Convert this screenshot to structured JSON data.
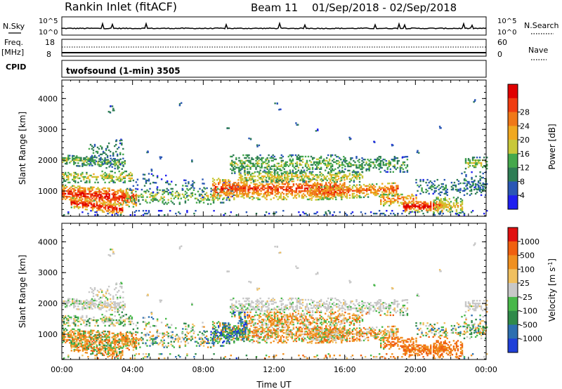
{
  "header": {
    "station": "Rankin Inlet (fitACF)",
    "beam": "Beam 11",
    "dates": "01/Sep/2018 - 02/Sep/2018"
  },
  "strip": {
    "nsky_label": "N.Sky",
    "nsearch_label": "N.Search",
    "nsky_ticks": [
      "10^5",
      "10^0"
    ],
    "freq_label": "Freq.",
    "freq_unit": "[MHz]",
    "freq_ticks": [
      "18",
      "8"
    ],
    "nave_label": "Nave",
    "nave_ticks": [
      "60",
      "0"
    ],
    "cpid_label": "CPID",
    "program": "twofsound (1-min) 3505"
  },
  "chart_data": [
    {
      "type": "heatmap",
      "name": "power",
      "ylabel": "Slant Range [km]",
      "yticks": [
        1000,
        2000,
        3000,
        4000
      ],
      "ylim": [
        180,
        4600
      ],
      "xlim_hours": [
        0,
        24
      ],
      "xticks": [
        "00:00",
        "04:00",
        "08:00",
        "12:00",
        "16:00",
        "20:00",
        "00:00"
      ],
      "colorbar": {
        "label": "Power [dB]",
        "ticks": [
          "4",
          "8",
          "12",
          "16",
          "20",
          "24",
          "28"
        ],
        "colors": [
          "#1f1ff0",
          "#2a57b5",
          "#2e7d55",
          "#45a84c",
          "#c8c83a",
          "#f0a820",
          "#f07818",
          "#f03c10",
          "#e00000"
        ]
      }
    },
    {
      "type": "heatmap",
      "name": "velocity",
      "ylabel": "Slant Range [km]",
      "yticks": [
        1000,
        2000,
        3000,
        4000
      ],
      "ylim": [
        180,
        4600
      ],
      "xlim_hours": [
        0,
        24
      ],
      "xticks": [
        "00:00",
        "04:00",
        "08:00",
        "12:00",
        "16:00",
        "20:00",
        "00:00"
      ],
      "xlabel": "Time UT",
      "colorbar": {
        "label": "Velocity [m s",
        "label_sup": "-1",
        "label_end": "]",
        "ticks": [
          "1000",
          "500",
          "100",
          "25",
          "-25",
          "-100",
          "-500",
          "-1000"
        ],
        "colors": [
          "#1f3fd8",
          "#2c6fb0",
          "#2f8a4a",
          "#48b84a",
          "#c8c8c8",
          "#f0c060",
          "#f09020",
          "#f06010",
          "#e01010"
        ]
      }
    }
  ]
}
